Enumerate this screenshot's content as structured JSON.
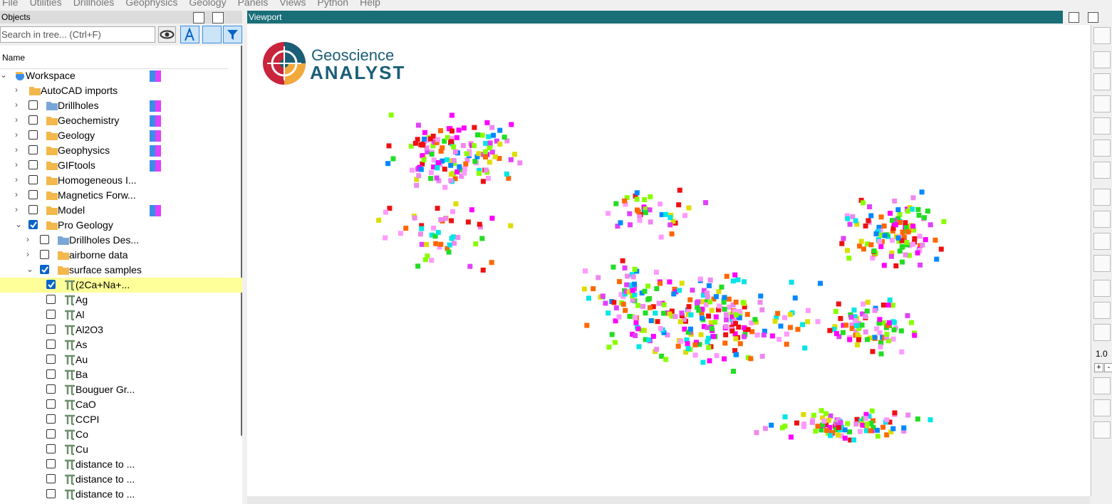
{
  "menu": [
    "File",
    "Utilities",
    "Drillholes",
    "Geophysics",
    "Geology",
    "Panels",
    "Views",
    "Python",
    "Help"
  ],
  "objects_panel": {
    "title": "Objects",
    "search_placeholder": "Search in tree... (Ctrl+F)",
    "column": "Name",
    "tree": [
      {
        "label": "Workspace",
        "depth": 0,
        "expanded": true,
        "checked": null
      },
      {
        "label": "AutoCAD imports",
        "depth": 1,
        "expanded": false,
        "checked": null
      },
      {
        "label": "Drillholes",
        "depth": 1,
        "expanded": false,
        "checked": false
      },
      {
        "label": "Geochemistry",
        "depth": 1,
        "expanded": false,
        "checked": false
      },
      {
        "label": "Geology",
        "depth": 1,
        "expanded": false,
        "checked": false
      },
      {
        "label": "Geophysics",
        "depth": 1,
        "expanded": false,
        "checked": false
      },
      {
        "label": "GIFtools",
        "depth": 1,
        "expanded": false,
        "checked": false
      },
      {
        "label": "Homogeneous I...",
        "depth": 1,
        "expanded": false,
        "checked": false
      },
      {
        "label": "Magnetics Forw...",
        "depth": 1,
        "expanded": false,
        "checked": false
      },
      {
        "label": "Model",
        "depth": 1,
        "expanded": false,
        "checked": false
      },
      {
        "label": "Pro Geology",
        "depth": 1,
        "expanded": true,
        "checked": true
      },
      {
        "label": "Drillholes Des...",
        "depth": 2,
        "expanded": false,
        "checked": false
      },
      {
        "label": "airborne data",
        "depth": 2,
        "expanded": false,
        "checked": false
      },
      {
        "label": "surface samples",
        "depth": 2,
        "expanded": true,
        "checked": true
      },
      {
        "label": "(2Ca+Na+...",
        "depth": 3,
        "checked": true,
        "selected": true
      },
      {
        "label": "Ag",
        "depth": 3,
        "checked": false
      },
      {
        "label": "Al",
        "depth": 3,
        "checked": false
      },
      {
        "label": "Al2O3",
        "depth": 3,
        "checked": false
      },
      {
        "label": "As",
        "depth": 3,
        "checked": false
      },
      {
        "label": "Au",
        "depth": 3,
        "checked": false
      },
      {
        "label": "Ba",
        "depth": 3,
        "checked": false
      },
      {
        "label": "Bouguer Gr...",
        "depth": 3,
        "checked": false
      },
      {
        "label": "CaO",
        "depth": 3,
        "checked": false
      },
      {
        "label": "CCPI",
        "depth": 3,
        "checked": false
      },
      {
        "label": "Co",
        "depth": 3,
        "checked": false
      },
      {
        "label": "Cu",
        "depth": 3,
        "checked": false
      },
      {
        "label": "distance to ...",
        "depth": 3,
        "checked": false
      },
      {
        "label": "distance to ...",
        "depth": 3,
        "checked": false
      },
      {
        "label": "distance to ...",
        "depth": 3,
        "checked": false
      }
    ]
  },
  "viewport": {
    "title": "Viewport",
    "logo": {
      "line1": "Geoscience",
      "line2": "ANALYST"
    }
  },
  "toolbar": {
    "scale": "1.0",
    "plus": "+",
    "minus": "-"
  }
}
